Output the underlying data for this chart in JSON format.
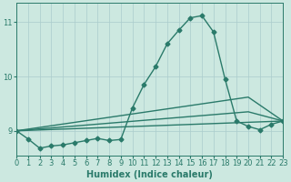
{
  "xlabel": "Humidex (Indice chaleur)",
  "xlim": [
    0,
    23
  ],
  "ylim": [
    8.55,
    11.35
  ],
  "yticks": [
    9,
    10,
    11
  ],
  "xticks": [
    0,
    1,
    2,
    3,
    4,
    5,
    6,
    7,
    8,
    9,
    10,
    11,
    12,
    13,
    14,
    15,
    16,
    17,
    18,
    19,
    20,
    21,
    22,
    23
  ],
  "bg_color": "#cce8e0",
  "grid_color": "#aacccc",
  "line_color": "#2a7a6a",
  "line1_x": [
    0,
    1,
    2,
    3,
    4,
    5,
    6,
    7,
    8,
    9,
    10,
    11,
    12,
    13,
    14,
    15,
    16,
    17,
    18,
    19,
    20,
    21,
    22,
    23
  ],
  "line1_y": [
    9.0,
    8.85,
    8.68,
    8.72,
    8.74,
    8.78,
    8.82,
    8.86,
    8.82,
    8.84,
    9.42,
    9.85,
    10.18,
    10.6,
    10.85,
    11.08,
    11.12,
    10.82,
    9.95,
    9.18,
    9.08,
    9.02,
    9.12,
    9.18
  ],
  "line2_x": [
    0,
    23
  ],
  "line2_y": [
    9.0,
    9.18
  ],
  "line3_x": [
    0,
    20,
    23
  ],
  "line3_y": [
    9.0,
    9.62,
    9.18
  ],
  "line4_x": [
    0,
    20,
    23
  ],
  "line4_y": [
    9.0,
    9.35,
    9.18
  ],
  "marker_size": 2.5,
  "line_width": 1.0,
  "tick_fontsize": 6,
  "xlabel_fontsize": 7
}
